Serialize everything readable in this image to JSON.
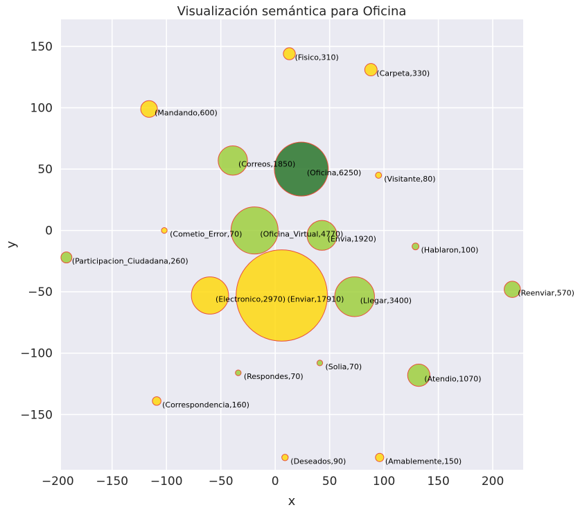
{
  "chart_data": {
    "type": "scatter",
    "title": "Visualización semántica para Oficina",
    "xlabel": "x",
    "ylabel": "y",
    "xlim": [
      -197,
      228
    ],
    "ylim": [
      -195,
      172
    ],
    "x_ticks": [
      -200,
      -150,
      -100,
      -50,
      0,
      50,
      100,
      150,
      200
    ],
    "y_ticks": [
      150,
      100,
      50,
      0,
      -50,
      -100,
      -150
    ],
    "x_tick_labels": [
      "−200",
      "−150",
      "−100",
      "−50",
      "0",
      "50",
      "100",
      "150",
      "200"
    ],
    "y_tick_labels": [
      "150",
      "100",
      "50",
      "0",
      "−50",
      "−100",
      "−150"
    ],
    "grid": true,
    "colors": {
      "background": "#eaeaf2",
      "edge": "#e8503c",
      "gold": "#ffd700",
      "green": "#9acd32",
      "dark_green": "#1e6e1e"
    },
    "points": [
      {
        "label": "(Enviar,17910)",
        "word": "Enviar",
        "value": 17910,
        "x": 6,
        "y": -53,
        "color": "gold"
      },
      {
        "label": "(Oficina,6250)",
        "word": "Oficina",
        "value": 6250,
        "x": 24,
        "y": 50,
        "color": "dark_green"
      },
      {
        "label": "(Oficina_Virtual,4770)",
        "word": "Oficina_Virtual",
        "value": 4770,
        "x": -19,
        "y": 0,
        "color": "green"
      },
      {
        "label": "(Llegar,3400)",
        "word": "Llegar",
        "value": 3400,
        "x": 73,
        "y": -54,
        "color": "green"
      },
      {
        "label": "(Electronico,2970)",
        "word": "Electronico",
        "value": 2970,
        "x": -60,
        "y": -53,
        "color": "gold"
      },
      {
        "label": "(Envia,1920)",
        "word": "Envia",
        "value": 1920,
        "x": 43,
        "y": -4,
        "color": "green"
      },
      {
        "label": "(Correos,1850)",
        "word": "Correos",
        "value": 1850,
        "x": -39,
        "y": 57,
        "color": "green"
      },
      {
        "label": "(Atendio,1070)",
        "word": "Atendio",
        "value": 1070,
        "x": 132,
        "y": -118,
        "color": "green"
      },
      {
        "label": "(Mandando,600)",
        "word": "Mandando",
        "value": 600,
        "x": -116,
        "y": 99,
        "color": "gold"
      },
      {
        "label": "(Reenviar,570)",
        "word": "Reenviar",
        "value": 570,
        "x": 218,
        "y": -48,
        "color": "green"
      },
      {
        "label": "(Carpeta,330)",
        "word": "Carpeta",
        "value": 330,
        "x": 88,
        "y": 131,
        "color": "gold"
      },
      {
        "label": "(Fisico,310)",
        "word": "Fisico",
        "value": 310,
        "x": 13,
        "y": 144,
        "color": "gold"
      },
      {
        "label": "(Participacion_Ciudadana,260)",
        "word": "Participacion_Ciudadana",
        "value": 260,
        "x": -192,
        "y": -22,
        "color": "green"
      },
      {
        "label": "(Correspondencia,160)",
        "word": "Correspondencia",
        "value": 160,
        "x": -109,
        "y": -139,
        "color": "gold"
      },
      {
        "label": "(Amablemente,150)",
        "word": "Amablemente",
        "value": 150,
        "x": 96,
        "y": -185,
        "color": "gold"
      },
      {
        "label": "(Hablaron,100)",
        "word": "Hablaron",
        "value": 100,
        "x": 129,
        "y": -13,
        "color": "green"
      },
      {
        "label": "(Deseados,90)",
        "word": "Deseados",
        "value": 90,
        "x": 9,
        "y": -185,
        "color": "gold"
      },
      {
        "label": "(Visitante,80)",
        "word": "Visitante",
        "value": 80,
        "x": 95,
        "y": 45,
        "color": "gold"
      },
      {
        "label": "(Cometio_Error,70)",
        "word": "Cometio_Error",
        "value": 70,
        "x": -102,
        "y": 0,
        "color": "gold"
      },
      {
        "label": "(Respondes,70)",
        "word": "Respondes",
        "value": 70,
        "x": -34,
        "y": -116,
        "color": "green"
      },
      {
        "label": "(Solia,70)",
        "word": "Solia",
        "value": 70,
        "x": 41,
        "y": -108,
        "color": "green"
      }
    ]
  }
}
